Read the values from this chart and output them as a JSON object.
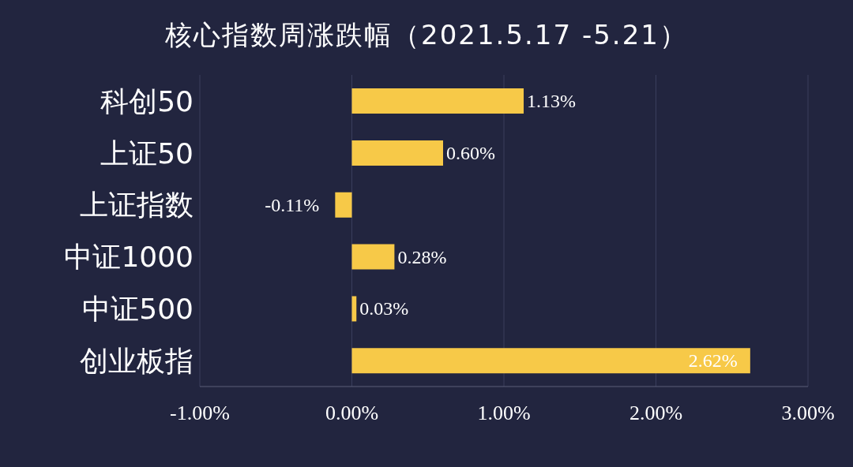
{
  "chart_data": {
    "type": "bar",
    "orientation": "horizontal",
    "title": "核心指数周涨跌幅（2021.5.17 -5.21）",
    "categories": [
      "科创50",
      "上证50",
      "上证指数",
      "中证1000",
      "中证500",
      "创业板指"
    ],
    "values": [
      1.13,
      0.6,
      -0.11,
      0.28,
      0.03,
      2.62
    ],
    "value_labels": [
      "1.13%",
      "0.60%",
      "-0.11%",
      "0.28%",
      "0.03%",
      "2.62%"
    ],
    "color": "#f7c948",
    "xlim": [
      -1,
      3
    ],
    "xticks": [
      {
        "value": -1,
        "label": "-1.00%"
      },
      {
        "value": 0,
        "label": "0.00%"
      },
      {
        "value": 1,
        "label": "1.00%"
      },
      {
        "value": 2,
        "label": "2.00%"
      },
      {
        "value": 3,
        "label": "3.00%"
      }
    ],
    "grid": "x",
    "legend": false
  }
}
